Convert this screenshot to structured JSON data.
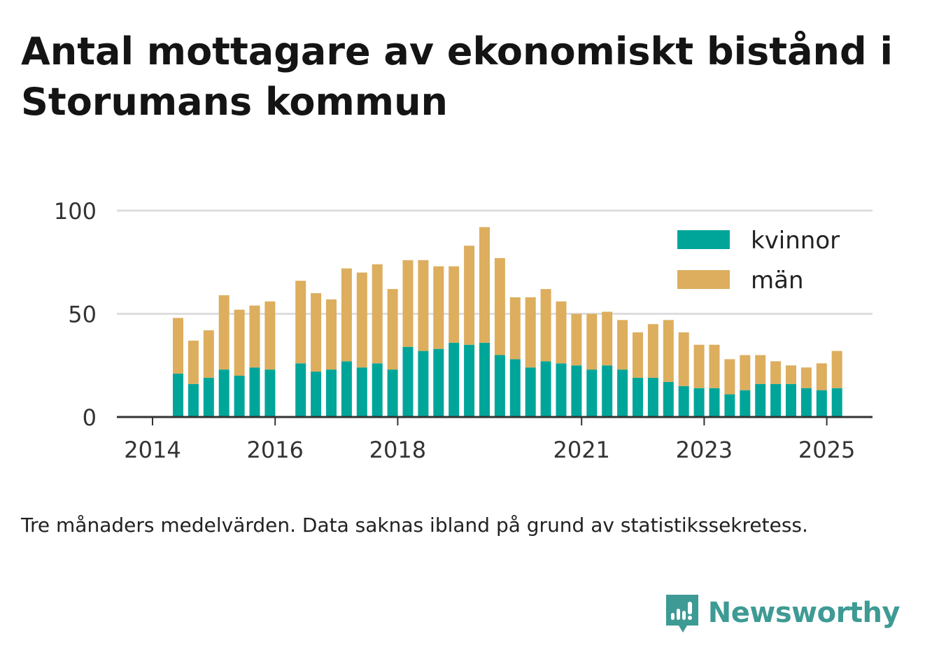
{
  "title": "Antal mottagare av ekonomiskt bistånd i Storumans kommun",
  "note": "Tre månaders medelvärden. Data saknas ibland på grund av statistikssekretess.",
  "brand": {
    "name": "Newsworthy",
    "icon": "bar-chart-speech-bubble-icon",
    "color": "#3e9a94"
  },
  "colors": {
    "kvinnor": "#00a59a",
    "man": "#dcae5e",
    "grid": "#dddddd",
    "axis": "#333333"
  },
  "chart_data": {
    "type": "bar",
    "stacked": true,
    "x_ticks": [
      "2014",
      "2016",
      "2018",
      "2021",
      "2023",
      "2025"
    ],
    "y_ticks": [
      0,
      50,
      100
    ],
    "ylim": [
      0,
      100
    ],
    "grid": true,
    "legend": {
      "placement": "top-right",
      "entries": [
        "kvinnor",
        "män"
      ]
    },
    "x": [
      "2014-06",
      "2014-09",
      "2014-12",
      "2015-03",
      "2015-06",
      "2015-09",
      "2015-12",
      "2016-03",
      "2016-06",
      "2016-09",
      "2016-12",
      "2017-03",
      "2017-06",
      "2017-09",
      "2017-12",
      "2018-03",
      "2018-06",
      "2018-09",
      "2018-12",
      "2019-03",
      "2019-06",
      "2019-09",
      "2019-12",
      "2020-03",
      "2020-06",
      "2020-09",
      "2020-12",
      "2021-03",
      "2021-06",
      "2021-09",
      "2021-12",
      "2022-03",
      "2022-06",
      "2022-09",
      "2022-12",
      "2023-03",
      "2023-06",
      "2023-09",
      "2023-12",
      "2024-03",
      "2024-06",
      "2024-09",
      "2024-12",
      "2025-03"
    ],
    "series": [
      {
        "name": "kvinnor",
        "values": [
          21,
          16,
          19,
          23,
          20,
          24,
          23,
          null,
          26,
          22,
          23,
          27,
          24,
          26,
          23,
          34,
          32,
          33,
          36,
          35,
          36,
          30,
          28,
          24,
          27,
          26,
          25,
          23,
          25,
          23,
          19,
          19,
          17,
          15,
          14,
          14,
          11,
          13,
          16,
          16,
          16,
          14,
          13,
          14
        ]
      },
      {
        "name": "män",
        "values": [
          27,
          21,
          23,
          36,
          32,
          30,
          33,
          null,
          40,
          38,
          34,
          45,
          46,
          48,
          39,
          42,
          44,
          40,
          37,
          48,
          56,
          47,
          30,
          34,
          35,
          30,
          25,
          27,
          26,
          24,
          22,
          26,
          30,
          26,
          21,
          21,
          17,
          17,
          14,
          11,
          9,
          10,
          13,
          18
        ]
      }
    ]
  }
}
